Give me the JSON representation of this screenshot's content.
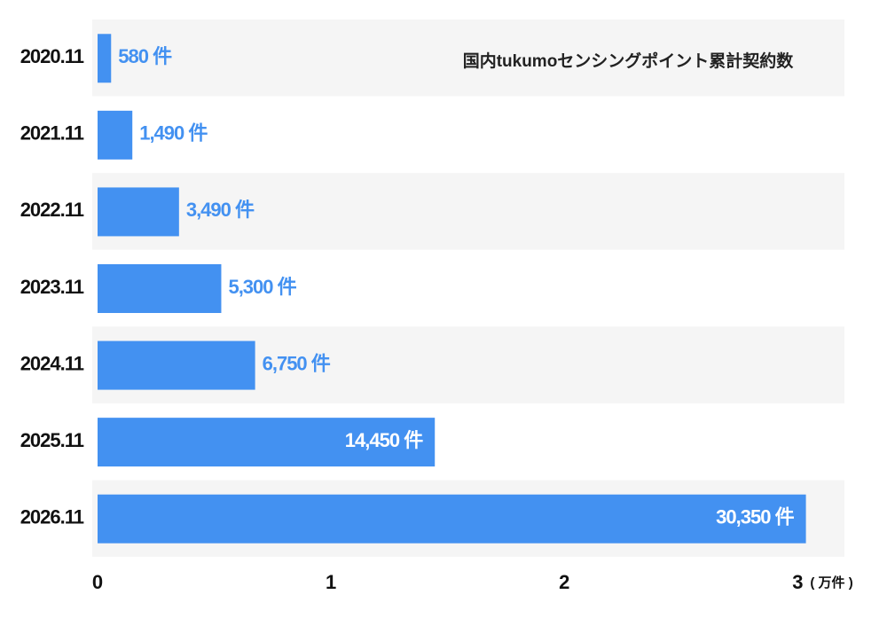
{
  "chart_data": {
    "type": "bar",
    "orientation": "horizontal",
    "title": "国内tukumoセンシングポイント累計契約数",
    "x_unit": "( 万件 )",
    "categories": [
      "2020.11",
      "2021.11",
      "2022.11",
      "2023.11",
      "2024.11",
      "2025.11",
      "2026.11"
    ],
    "values": [
      0.058,
      0.149,
      0.349,
      0.53,
      0.675,
      1.445,
      3.035
    ],
    "value_labels": [
      "580 件",
      "1,490 件",
      "3,490 件",
      "5,300 件",
      "6,750 件",
      "14,450 件",
      "30,350 件"
    ],
    "color": "#4391f1",
    "xlim": [
      0,
      3.2
    ],
    "xticks": [
      0,
      1,
      2,
      3
    ]
  }
}
